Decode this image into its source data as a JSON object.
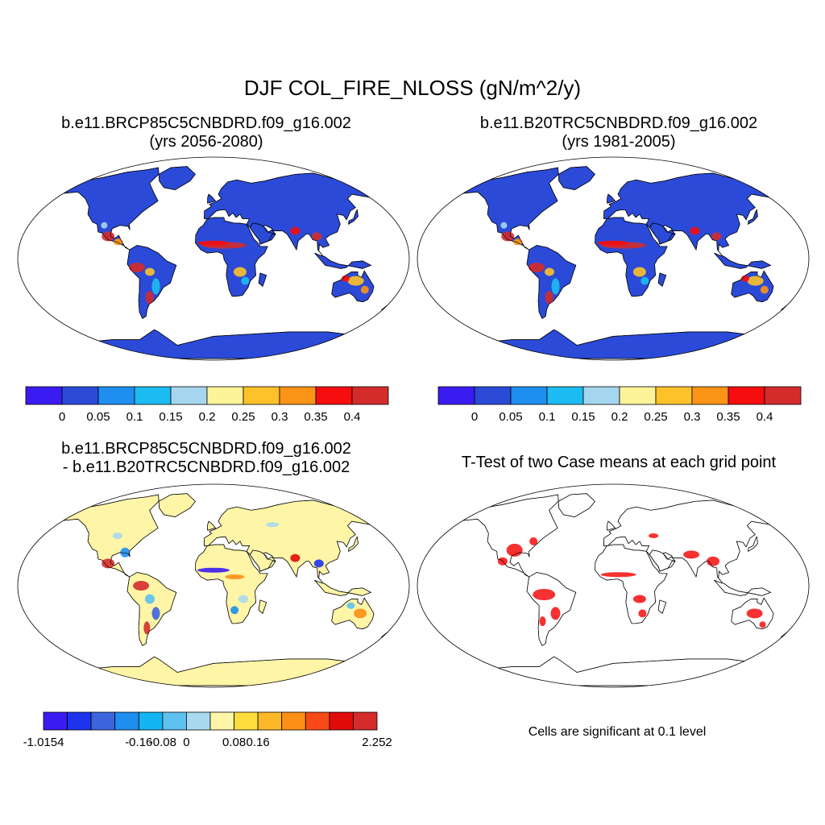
{
  "figure": {
    "title": "DJF COL_FIRE_NLOSS (gN/m^2/y)"
  },
  "panels": [
    {
      "title_line1": "b.e11.BRCP85C5CNBDRD.f09_g16.002",
      "title_line2": "(yrs 2056-2080)"
    },
    {
      "title_line1": "b.e11.B20TRC5CNBDRD.f09_g16.002",
      "title_line2": "(yrs 1981-2005)"
    },
    {
      "title_line1": "b.e11.BRCP85C5CNBDRD.f09_g16.002",
      "title_line2": "- b.e11.B20TRC5CNBDRD.f09_g16.002"
    },
    {
      "title_line1": "T-Test of two Case means at each grid point",
      "note": "Cells are significant at 0.1 level"
    }
  ],
  "colorbars": {
    "abs": {
      "colors": [
        "#3a1cf2",
        "#2b4ad8",
        "#1e8ef0",
        "#1cbcf2",
        "#a6d6ef",
        "#fdf49a",
        "#fdc229",
        "#fc9417",
        "#f60d0d",
        "#d42b2b"
      ],
      "labels": [
        "0",
        "0.05",
        "0.1",
        "0.15",
        "0.2",
        "0.25",
        "0.3",
        "0.35",
        "0.4"
      ]
    },
    "diff": {
      "colors": [
        "#3a1cf2",
        "#1d33ee",
        "#3d64de",
        "#1e8ef0",
        "#15b4f2",
        "#5ec0ef",
        "#a8d9ef",
        "#fff5a6",
        "#fedc3c",
        "#fdb82a",
        "#fc8f15",
        "#f84a16",
        "#e00b0b",
        "#d42b2b"
      ],
      "labels": [
        "-1.0154",
        "-0.16",
        "-0.08",
        "0",
        "0.08",
        "0.16",
        "2.252"
      ]
    }
  }
}
